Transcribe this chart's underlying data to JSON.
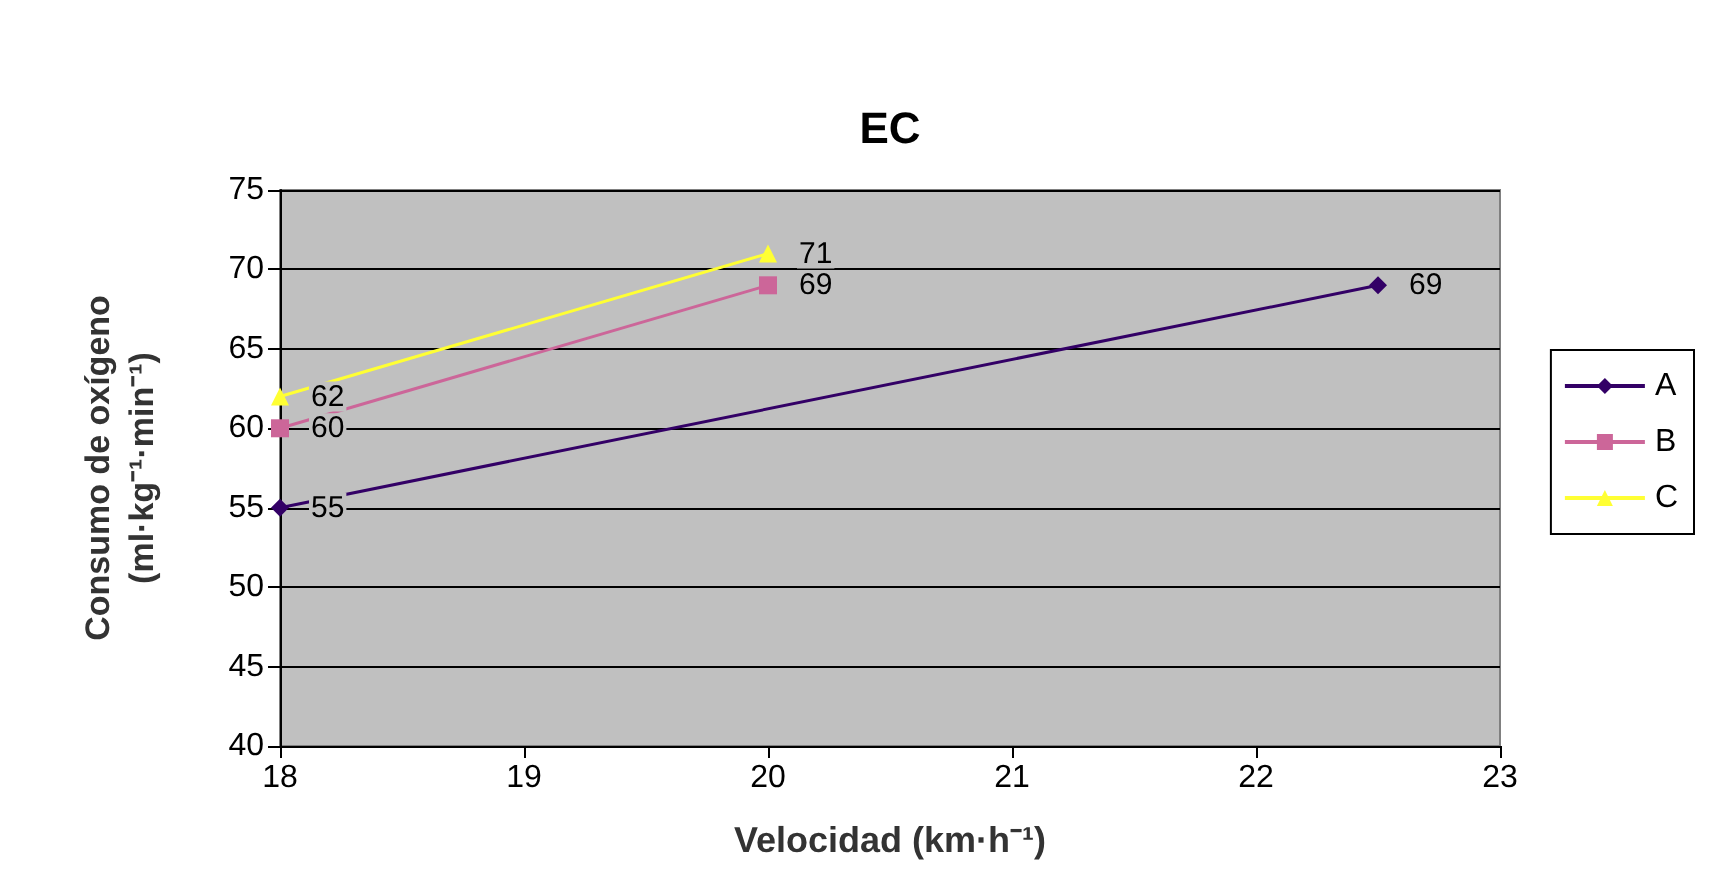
{
  "chart_data": {
    "type": "line",
    "title": "EC",
    "xlabel": "Velocidad (km·h⁻¹)",
    "ylabel": "Consumo de oxígeno\n(ml·kg⁻¹·min⁻¹)",
    "series": [
      {
        "name": "A",
        "color": "#330066",
        "marker": "diamond",
        "x": [
          18,
          22.5
        ],
        "values": [
          55,
          69
        ]
      },
      {
        "name": "B",
        "color": "#cc6699",
        "marker": "square",
        "x": [
          18,
          20
        ],
        "values": [
          60,
          69
        ]
      },
      {
        "name": "C",
        "color": "#ffff33",
        "marker": "triangle",
        "x": [
          18,
          20
        ],
        "values": [
          62,
          71
        ]
      }
    ],
    "xlim": [
      18,
      23
    ],
    "xticks": [
      18,
      19,
      20,
      21,
      22,
      23
    ],
    "ylim": [
      40,
      75
    ],
    "yticks": [
      40,
      45,
      50,
      55,
      60,
      65,
      70,
      75
    ],
    "grid": "y",
    "legend": "right",
    "data_labels": true,
    "line_style": "solid"
  }
}
